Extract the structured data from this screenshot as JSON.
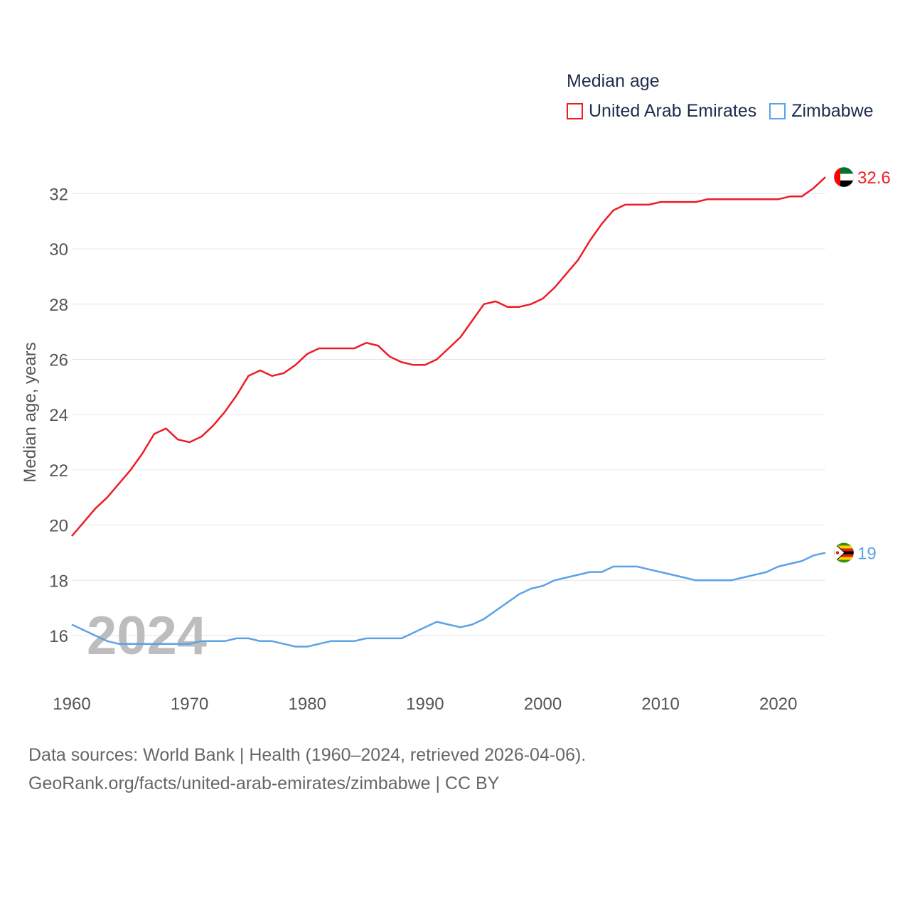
{
  "chart_data": {
    "type": "line",
    "legend_title": "Median age",
    "ylabel": "Median age, years",
    "xlim": [
      1960,
      2024
    ],
    "ylim": [
      15,
      33
    ],
    "x_ticks": [
      1960,
      1970,
      1980,
      1990,
      2000,
      2010,
      2020
    ],
    "y_ticks": [
      16,
      18,
      20,
      22,
      24,
      26,
      28,
      30,
      32
    ],
    "grid": true,
    "year_watermark": "2024",
    "x": [
      1960,
      1961,
      1962,
      1963,
      1964,
      1965,
      1966,
      1967,
      1968,
      1969,
      1970,
      1971,
      1972,
      1973,
      1974,
      1975,
      1976,
      1977,
      1978,
      1979,
      1980,
      1981,
      1982,
      1983,
      1984,
      1985,
      1986,
      1987,
      1988,
      1989,
      1990,
      1991,
      1992,
      1993,
      1994,
      1995,
      1996,
      1997,
      1998,
      1999,
      2000,
      2001,
      2002,
      2003,
      2004,
      2005,
      2006,
      2007,
      2008,
      2009,
      2010,
      2011,
      2012,
      2013,
      2014,
      2015,
      2016,
      2017,
      2018,
      2019,
      2020,
      2021,
      2022,
      2023,
      2024
    ],
    "series": [
      {
        "name": "United Arab Emirates",
        "color": "#ee1c25",
        "end_label": "32.6",
        "flag": "uae-flag",
        "values": [
          19.6,
          20.1,
          20.6,
          21.0,
          21.5,
          22.0,
          22.6,
          23.3,
          23.5,
          23.1,
          23.0,
          23.2,
          23.6,
          24.1,
          24.7,
          25.4,
          25.6,
          25.4,
          25.5,
          25.8,
          26.2,
          26.4,
          26.4,
          26.4,
          26.4,
          26.6,
          26.5,
          26.1,
          25.9,
          25.8,
          25.8,
          26.0,
          26.4,
          26.8,
          27.4,
          28.0,
          28.1,
          27.9,
          27.9,
          28.0,
          28.2,
          28.6,
          29.1,
          29.6,
          30.3,
          30.9,
          31.4,
          31.6,
          31.6,
          31.6,
          31.7,
          31.7,
          31.7,
          31.7,
          31.8,
          31.8,
          31.8,
          31.8,
          31.8,
          31.8,
          31.8,
          31.9,
          31.9,
          32.2,
          32.6
        ]
      },
      {
        "name": "Zimbabwe",
        "color": "#5ca2e6",
        "end_label": "19",
        "flag": "zimbabwe-flag",
        "values": [
          16.4,
          16.2,
          16.0,
          15.8,
          15.7,
          15.7,
          15.7,
          15.7,
          15.7,
          15.7,
          15.7,
          15.8,
          15.8,
          15.8,
          15.9,
          15.9,
          15.8,
          15.8,
          15.7,
          15.6,
          15.6,
          15.7,
          15.8,
          15.8,
          15.8,
          15.9,
          15.9,
          15.9,
          15.9,
          16.1,
          16.3,
          16.5,
          16.4,
          16.3,
          16.4,
          16.6,
          16.9,
          17.2,
          17.5,
          17.7,
          17.8,
          18.0,
          18.1,
          18.2,
          18.3,
          18.3,
          18.5,
          18.5,
          18.5,
          18.4,
          18.3,
          18.2,
          18.1,
          18.0,
          18.0,
          18.0,
          18.0,
          18.1,
          18.2,
          18.3,
          18.5,
          18.6,
          18.7,
          18.9,
          19.0
        ]
      }
    ]
  },
  "footer": {
    "sources": "Data sources: World Bank | Health (1960–2024, retrieved 2026-04-06).",
    "credit": "GeoRank.org/facts/united-arab-emirates/zimbabwe | CC BY"
  }
}
